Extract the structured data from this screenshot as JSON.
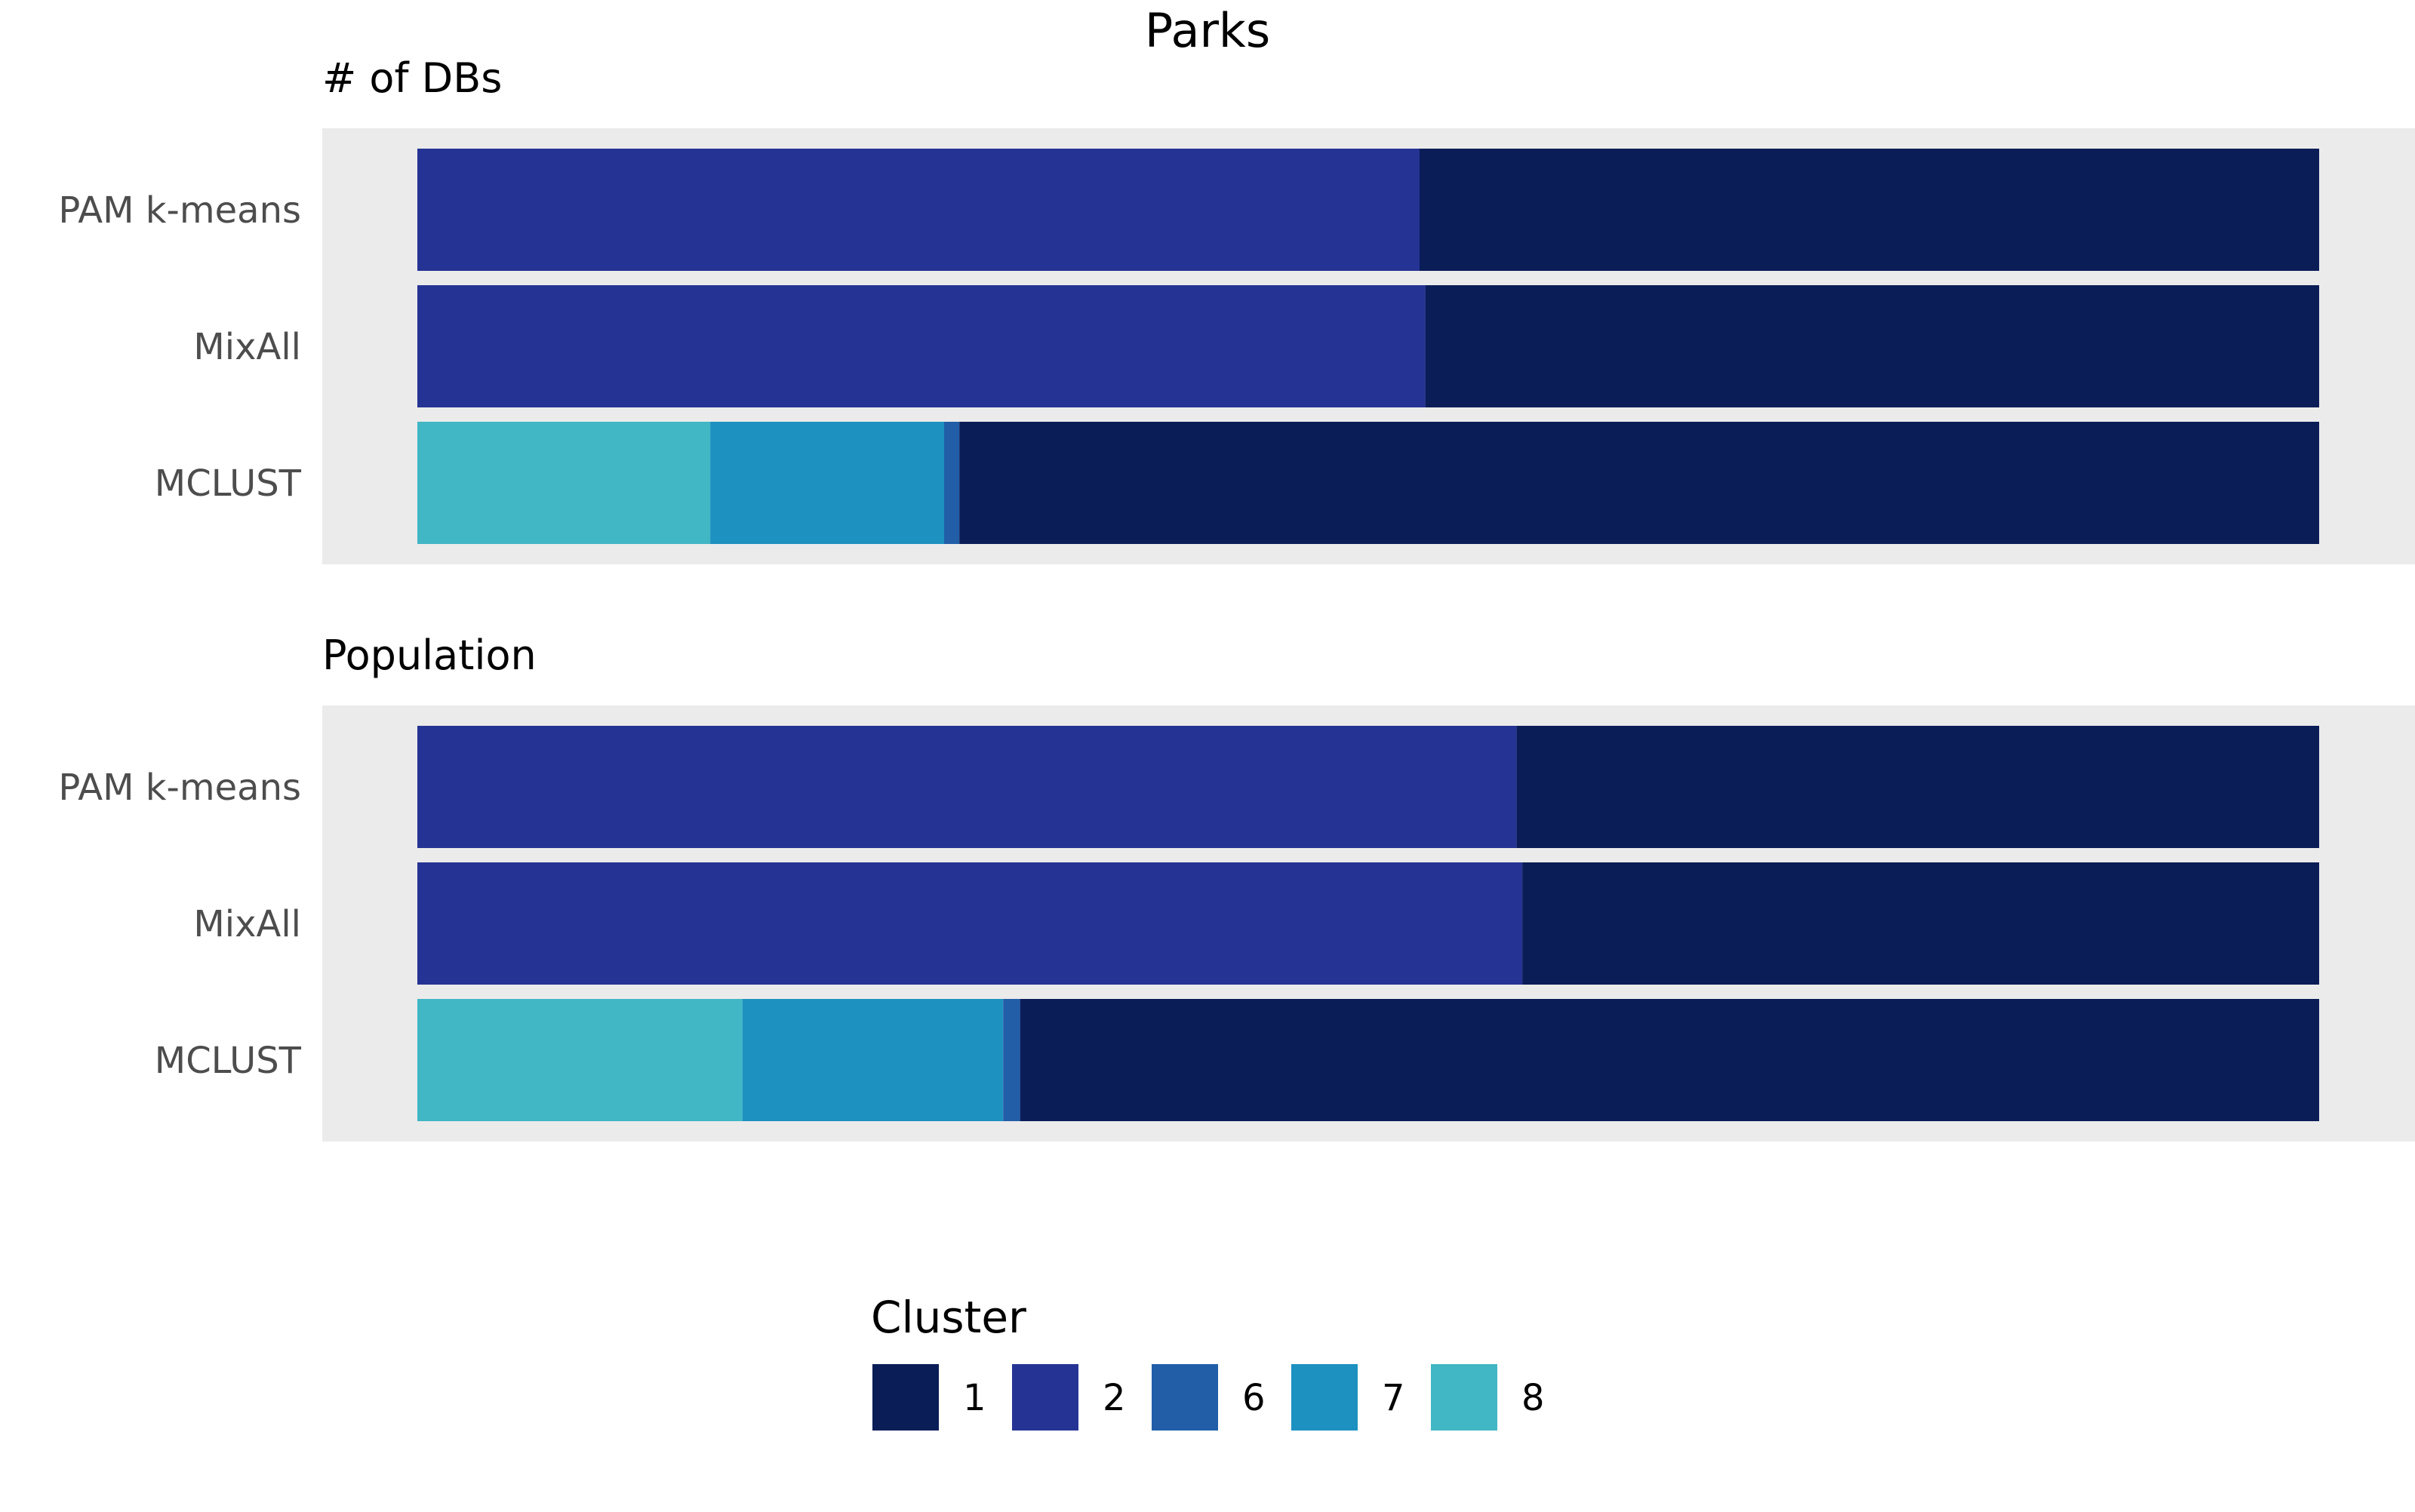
{
  "chart_data": {
    "type": "bar",
    "orientation": "horizontal",
    "stacked": true,
    "normalized": true,
    "title": "Parks",
    "grid": false,
    "legend_position": "bottom",
    "legend": {
      "title": "Cluster",
      "entries": [
        {
          "key": "1",
          "label": "1",
          "color": "#0a1d57"
        },
        {
          "key": "2",
          "label": "2",
          "color": "#253494"
        },
        {
          "key": "6",
          "label": "6",
          "color": "#225ea8"
        },
        {
          "key": "7",
          "label": "7",
          "color": "#1d91c0"
        },
        {
          "key": "8",
          "label": "8",
          "color": "#41b6c4"
        }
      ]
    },
    "panels": [
      {
        "title": "# of DBs",
        "categories": [
          "PAM k-means",
          "MixAll",
          "MCLUST"
        ],
        "rows": [
          {
            "category": "PAM k-means",
            "segments": [
              {
                "cluster": "2",
                "value": 0.527
              },
              {
                "cluster": "1",
                "value": 0.473
              }
            ]
          },
          {
            "category": "MixAll",
            "segments": [
              {
                "cluster": "2",
                "value": 0.53
              },
              {
                "cluster": "1",
                "value": 0.47
              }
            ]
          },
          {
            "category": "MCLUST",
            "segments": [
              {
                "cluster": "8",
                "value": 0.154
              },
              {
                "cluster": "7",
                "value": 0.123
              },
              {
                "cluster": "6",
                "value": 0.008
              },
              {
                "cluster": "1",
                "value": 0.715
              }
            ]
          }
        ]
      },
      {
        "title": "Population",
        "categories": [
          "PAM k-means",
          "MixAll",
          "MCLUST"
        ],
        "rows": [
          {
            "category": "PAM k-means",
            "segments": [
              {
                "cluster": "2",
                "value": 0.578
              },
              {
                "cluster": "1",
                "value": 0.422
              }
            ]
          },
          {
            "category": "MixAll",
            "segments": [
              {
                "cluster": "2",
                "value": 0.581
              },
              {
                "cluster": "1",
                "value": 0.419
              }
            ]
          },
          {
            "category": "MCLUST",
            "segments": [
              {
                "cluster": "8",
                "value": 0.171
              },
              {
                "cluster": "7",
                "value": 0.137
              },
              {
                "cluster": "6",
                "value": 0.009
              },
              {
                "cluster": "1",
                "value": 0.683
              }
            ]
          }
        ]
      }
    ]
  },
  "colors": {
    "panel_background": "#ebebeb",
    "page_background": "#ffffff",
    "title_text": "#000000",
    "category_text": "#4d4d4d"
  }
}
